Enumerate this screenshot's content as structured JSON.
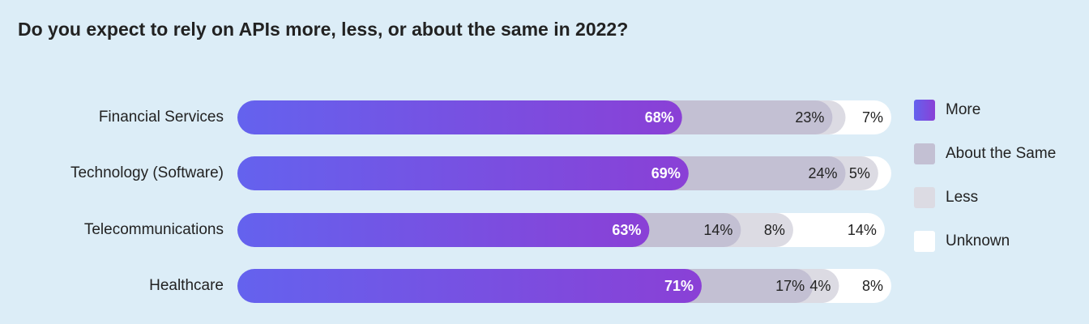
{
  "chart_data": {
    "type": "stacked-bar-horizontal",
    "title": "Do you expect to rely on APIs more, less, or about the same in 2022?",
    "categories": [
      "Financial Services",
      "Technology (Software)",
      "Telecommunications",
      "Healthcare"
    ],
    "xlim": [
      0,
      100
    ],
    "legend": "right",
    "series": [
      {
        "name": "More",
        "color": [
          "#6462ee",
          "#8a40d6"
        ],
        "values": [
          68,
          69,
          63,
          71
        ],
        "value_labels": [
          "68%",
          "69%",
          "63%",
          "71%"
        ]
      },
      {
        "name": "About the Same",
        "color": "#c3c0d3",
        "values": [
          23,
          24,
          14,
          17
        ],
        "value_labels": [
          "23%",
          "24%",
          "14%",
          "17%"
        ]
      },
      {
        "name": "Less",
        "color": "#dcdbe3",
        "values": [
          2,
          5,
          8,
          4
        ],
        "value_labels": [
          null,
          "5%",
          "8%",
          "4%"
        ]
      },
      {
        "name": "Unknown",
        "color": "#ffffff",
        "values": [
          7,
          2,
          14,
          8
        ],
        "value_labels": [
          "7%",
          null,
          "14%",
          "8%"
        ]
      }
    ]
  }
}
